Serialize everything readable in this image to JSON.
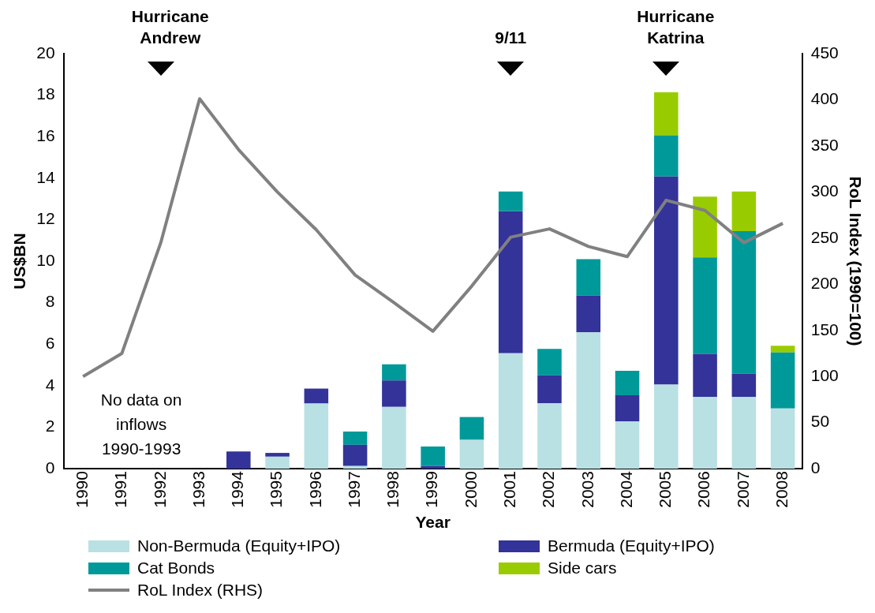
{
  "chart_data": {
    "type": "bar",
    "stacked": true,
    "xlabel": "Year",
    "ylabel": "US$BN",
    "y2label": "RoL Index (1990=100)",
    "categories": [
      "1990",
      "1991",
      "1992",
      "1993",
      "1994",
      "1995",
      "1996",
      "1997",
      "1998",
      "1999",
      "2000",
      "2001",
      "2002",
      "2003",
      "2004",
      "2005",
      "2006",
      "2007",
      "2008"
    ],
    "series": [
      {
        "name": "Non-Bermuda (Equity+IPO)",
        "color": "#b9e0e3",
        "values": [
          null,
          null,
          null,
          null,
          null,
          0.58,
          3.14,
          0.13,
          2.98,
          null,
          1.39,
          5.56,
          3.15,
          6.57,
          2.27,
          4.05,
          3.45,
          3.45,
          2.9
        ]
      },
      {
        "name": "Bermuda (Equity+IPO)",
        "color": "#333399",
        "values": [
          null,
          null,
          null,
          null,
          0.83,
          0.18,
          0.72,
          1.02,
          1.27,
          0.13,
          null,
          6.85,
          1.35,
          1.78,
          1.27,
          10.03,
          2.08,
          1.13,
          null
        ]
      },
      {
        "name": "Cat Bonds",
        "color": "#009999",
        "values": [
          null,
          null,
          null,
          null,
          null,
          null,
          null,
          0.64,
          0.78,
          0.94,
          1.1,
          0.95,
          1.27,
          1.75,
          1.18,
          1.99,
          4.65,
          6.87,
          2.7
        ]
      },
      {
        "name": "Side cars",
        "color": "#99cc00",
        "values": [
          null,
          null,
          null,
          null,
          null,
          null,
          null,
          null,
          null,
          null,
          null,
          null,
          null,
          null,
          null,
          2.07,
          2.93,
          1.91,
          0.32
        ]
      },
      {
        "name": "RoL Index (RHS)",
        "type": "line",
        "axis": "y2",
        "color": "#808080",
        "values": [
          100,
          125,
          245,
          401,
          346,
          300,
          259,
          210,
          180,
          149,
          198,
          251,
          260,
          241,
          230,
          291,
          280,
          245,
          266
        ]
      }
    ],
    "ylim": [
      0,
      20
    ],
    "yticks": [
      0,
      2,
      4,
      6,
      8,
      10,
      12,
      14,
      16,
      18,
      20
    ],
    "y2lim": [
      0,
      450
    ],
    "y2ticks": [
      0,
      50,
      100,
      150,
      200,
      250,
      300,
      350,
      400,
      450
    ],
    "grid": false,
    "legend": "bottom",
    "marker": "none",
    "annotations": [
      "Hurricane Andrew",
      "9/11",
      "Hurricane Katrina",
      "No data on inflows 1990-1993"
    ]
  }
}
